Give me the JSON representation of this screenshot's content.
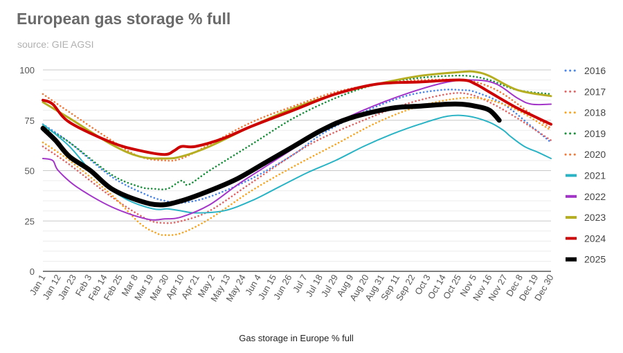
{
  "chart_data": {
    "type": "line",
    "title": "European gas storage % full",
    "subtitle": "source: GIE AGSI",
    "xlabel": "Gas storage in Europe % full",
    "ylabel": "",
    "ylim": [
      0,
      100
    ],
    "yticks": [
      0,
      25,
      50,
      75,
      100
    ],
    "xlim": [
      1,
      364
    ],
    "x_tick_days": [
      1,
      12,
      23,
      34,
      45,
      56,
      67,
      78,
      89,
      100,
      111,
      122,
      133,
      144,
      155,
      166,
      177,
      188,
      199,
      210,
      221,
      232,
      243,
      254,
      265,
      276,
      287,
      298,
      309,
      320,
      331,
      342,
      353,
      364
    ],
    "x_tick_labels": [
      "Jan 1",
      "Jan 12",
      "Jan 23",
      "Feb 3",
      "Feb 14",
      "Feb 25",
      "Mar 8",
      "Mar 19",
      "Mar 30",
      "Apr 10",
      "Apr 21",
      "May 2",
      "May 13",
      "May 24",
      "Jun 4",
      "Jun 15",
      "Jun 26",
      "Jul 7",
      "Jul 18",
      "Jul 29",
      "Aug 9",
      "Aug 20",
      "Aug 31",
      "Sep 11",
      "Sep 22",
      "Oct 3",
      "Oct 14",
      "Oct 25",
      "Nov 5",
      "Nov 16",
      "Nov 27",
      "Dec 8",
      "Dec 19",
      "Dec 30"
    ],
    "grid": true,
    "legend_position": "right",
    "series": [
      {
        "name": "2016",
        "color": "#4a86e8",
        "style": "dotted",
        "x": [
          1,
          20,
          50,
          75,
          88,
          100,
          120,
          150,
          180,
          200,
          230,
          260,
          285,
          300,
          310,
          330,
          350,
          364
        ],
        "y": [
          73,
          64,
          47,
          38,
          35,
          34,
          37,
          46,
          58,
          68,
          79,
          87,
          90,
          90,
          89,
          83,
          72,
          64
        ]
      },
      {
        "name": "2017",
        "color": "#e06666",
        "style": "dotted",
        "x": [
          1,
          20,
          50,
          75,
          88,
          100,
          120,
          150,
          180,
          200,
          230,
          260,
          290,
          305,
          320,
          340,
          364
        ],
        "y": [
          62,
          53,
          37,
          26,
          24,
          25,
          30,
          44,
          58,
          66,
          75,
          83,
          88,
          88,
          84,
          76,
          65
        ]
      },
      {
        "name": "2018",
        "color": "#f6a623",
        "style": "dotted",
        "x": [
          1,
          20,
          50,
          70,
          82,
          88,
          100,
          120,
          150,
          180,
          210,
          240,
          270,
          300,
          320,
          340,
          364
        ],
        "y": [
          64,
          55,
          38,
          24,
          19,
          18,
          19,
          26,
          40,
          52,
          63,
          74,
          82,
          86,
          85,
          80,
          70
        ]
      },
      {
        "name": "2019",
        "color": "#1a8f3c",
        "style": "dotted",
        "x": [
          1,
          20,
          50,
          70,
          80,
          90,
          100,
          105,
          120,
          150,
          180,
          210,
          240,
          270,
          290,
          305,
          320,
          340,
          364
        ],
        "y": [
          72,
          64,
          48,
          42,
          41,
          41,
          45,
          43,
          50,
          63,
          76,
          86,
          93,
          96,
          97,
          97,
          95,
          90,
          88
        ]
      },
      {
        "name": "2020",
        "color": "#f07a3a",
        "style": "dotted",
        "x": [
          1,
          20,
          50,
          70,
          88,
          100,
          120,
          150,
          180,
          210,
          240,
          270,
          300,
          315,
          330,
          350,
          364
        ],
        "y": [
          88,
          79,
          65,
          57,
          55,
          56,
          63,
          74,
          82,
          89,
          93,
          95,
          95,
          93,
          88,
          78,
          71
        ]
      },
      {
        "name": "2021",
        "color": "#29b3c4",
        "style": "solid",
        "x": [
          1,
          20,
          40,
          60,
          80,
          90,
          100,
          110,
          130,
          150,
          170,
          190,
          210,
          230,
          250,
          270,
          290,
          305,
          320,
          330,
          335,
          345,
          355,
          364
        ],
        "y": [
          73,
          62,
          46,
          36,
          31,
          31,
          30,
          29,
          30,
          35,
          42,
          49,
          55,
          62,
          68,
          73,
          77,
          77,
          74,
          70,
          67,
          62,
          59,
          56
        ]
      },
      {
        "name": "2022",
        "color": "#a234c8",
        "style": "solid",
        "x": [
          1,
          8,
          12,
          25,
          50,
          75,
          88,
          100,
          120,
          140,
          160,
          180,
          200,
          230,
          260,
          290,
          310,
          325,
          340,
          350,
          364
        ],
        "y": [
          56,
          55,
          50,
          42,
          32,
          26,
          26,
          27,
          33,
          43,
          52,
          61,
          70,
          80,
          88,
          94,
          95,
          93,
          86,
          83,
          83
        ]
      },
      {
        "name": "2023",
        "color": "#b5ae22",
        "style": "solid",
        "x": [
          1,
          20,
          50,
          70,
          88,
          100,
          120,
          150,
          180,
          210,
          240,
          270,
          300,
          310,
          320,
          340,
          364
        ],
        "y": [
          84,
          76,
          63,
          57,
          56,
          57,
          62,
          72,
          81,
          88,
          93,
          97,
          99,
          99,
          97,
          90,
          87
        ]
      },
      {
        "name": "2024",
        "color": "#cc0000",
        "style": "solid",
        "x": [
          1,
          8,
          20,
          50,
          70,
          88,
          95,
          100,
          110,
          130,
          150,
          180,
          210,
          240,
          270,
          300,
          310,
          320,
          340,
          364
        ],
        "y": [
          85,
          83,
          74,
          64,
          60,
          58,
          60,
          62,
          62,
          66,
          72,
          80,
          88,
          93,
          94,
          95,
          93,
          89,
          81,
          73
        ]
      },
      {
        "name": "2025",
        "color": "#000000",
        "style": "solid",
        "x": [
          1,
          10,
          20,
          35,
          50,
          70,
          85,
          100,
          120,
          140,
          160,
          180,
          200,
          220,
          250,
          270,
          290,
          300,
          310,
          320,
          327
        ],
        "y": [
          71,
          65,
          57,
          50,
          41,
          35,
          33,
          35,
          40,
          46,
          54,
          62,
          70,
          76,
          81,
          82,
          83,
          83,
          82,
          80,
          75
        ]
      }
    ]
  }
}
